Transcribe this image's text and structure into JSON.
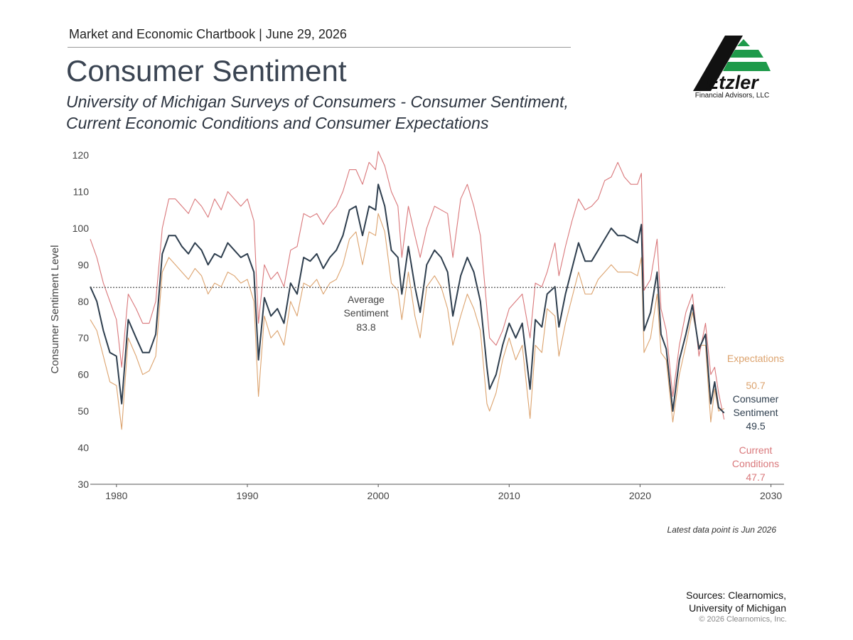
{
  "header": "Market and Economic Chartbook | June 29, 2026",
  "title": "Consumer Sentiment",
  "subtitle": [
    "University of Michigan Surveys of Consumers - Consumer Sentiment,",
    "Current Economic Conditions and Consumer Expectations"
  ],
  "logo": {
    "name": "Etzler",
    "tagline": "Financial Advisors, LLC"
  },
  "chart_data": {
    "type": "line",
    "ylabel": "Consumer Sentiment Level",
    "xlim": [
      1978,
      2031
    ],
    "xticks": [
      1980,
      1990,
      2000,
      2010,
      2020,
      2030
    ],
    "ylim": [
      30,
      120
    ],
    "yticks": [
      30,
      40,
      50,
      60,
      70,
      80,
      90,
      100,
      110,
      120
    ],
    "grid": false,
    "x": [
      1978.0,
      1978.5,
      1979.0,
      1979.5,
      1980.0,
      1980.4,
      1980.9,
      1981.5,
      1982.0,
      1982.5,
      1983.0,
      1983.5,
      1984.0,
      1984.5,
      1985.0,
      1985.5,
      1986.0,
      1986.5,
      1987.0,
      1987.5,
      1988.0,
      1988.5,
      1989.0,
      1989.5,
      1990.0,
      1990.5,
      1990.85,
      1991.3,
      1991.8,
      1992.3,
      1992.8,
      1993.3,
      1993.8,
      1994.3,
      1994.8,
      1995.3,
      1995.8,
      1996.3,
      1996.8,
      1997.3,
      1997.8,
      1998.3,
      1998.8,
      1999.3,
      1999.8,
      2000.0,
      2000.5,
      2001.0,
      2001.5,
      2001.8,
      2002.3,
      2002.8,
      2003.2,
      2003.7,
      2004.3,
      2004.8,
      2005.3,
      2005.7,
      2006.3,
      2006.8,
      2007.3,
      2007.8,
      2008.3,
      2008.5,
      2009.0,
      2009.5,
      2010.0,
      2010.5,
      2011.0,
      2011.6,
      2012.0,
      2012.5,
      2012.9,
      2013.5,
      2013.8,
      2014.3,
      2014.8,
      2015.3,
      2015.8,
      2016.3,
      2016.8,
      2017.3,
      2017.8,
      2018.3,
      2018.8,
      2019.3,
      2019.8,
      2020.1,
      2020.3,
      2020.8,
      2021.3,
      2021.6,
      2022.0,
      2022.5,
      2023.0,
      2023.5,
      2024.0,
      2024.5,
      2025.0,
      2025.4,
      2025.7,
      2026.0,
      2026.42
    ],
    "series": [
      {
        "name": "Current Conditions",
        "color": "#d9777a",
        "values": [
          97,
          92,
          85,
          80,
          75,
          62,
          82,
          78,
          74,
          74,
          80,
          100,
          108,
          108,
          106,
          104,
          108,
          106,
          103,
          108,
          105,
          110,
          108,
          106,
          108,
          102,
          74,
          90,
          86,
          88,
          84,
          94,
          95,
          104,
          103,
          104,
          101,
          104,
          106,
          110,
          116,
          116,
          112,
          118,
          116,
          121,
          117,
          110,
          106,
          92,
          106,
          98,
          92,
          100,
          106,
          105,
          104,
          92,
          108,
          112,
          106,
          98,
          78,
          70,
          68,
          72,
          78,
          80,
          82,
          70,
          85,
          84,
          88,
          96,
          87,
          95,
          102,
          108,
          105,
          106,
          108,
          113,
          114,
          118,
          114,
          112,
          112,
          115,
          83,
          86,
          97,
          78,
          72,
          54,
          68,
          77,
          82,
          65,
          74,
          60,
          62,
          55,
          47.7
        ]
      },
      {
        "name": "Expectations",
        "color": "#dca36e",
        "values": [
          75,
          72,
          65,
          58,
          57,
          45,
          70,
          65,
          60,
          61,
          65,
          88,
          92,
          90,
          88,
          86,
          89,
          87,
          82,
          85,
          84,
          88,
          87,
          85,
          86,
          80,
          54,
          76,
          70,
          72,
          68,
          80,
          76,
          85,
          84,
          86,
          82,
          85,
          86,
          90,
          97,
          99,
          90,
          99,
          98,
          104,
          99,
          85,
          83,
          75,
          88,
          76,
          70,
          84,
          87,
          84,
          78,
          68,
          76,
          82,
          78,
          72,
          52,
          50,
          55,
          64,
          70,
          64,
          68,
          48,
          68,
          66,
          78,
          76,
          65,
          74,
          81,
          88,
          82,
          82,
          86,
          88,
          90,
          88,
          88,
          88,
          87,
          92,
          66,
          70,
          82,
          66,
          64,
          47,
          60,
          68,
          77,
          68,
          68,
          47,
          56,
          50,
          50.7
        ]
      },
      {
        "name": "Consumer Sentiment",
        "color": "#2e3e4e",
        "values": [
          84,
          80,
          72,
          66,
          65,
          52,
          75,
          70,
          66,
          66,
          71,
          93,
          98,
          98,
          95,
          93,
          96,
          94,
          90,
          93,
          92,
          96,
          94,
          92,
          93,
          88,
          64,
          81,
          76,
          78,
          74,
          85,
          82,
          92,
          91,
          93,
          89,
          92,
          94,
          98,
          105,
          106,
          98,
          106,
          105,
          112,
          106,
          94,
          92,
          82,
          95,
          84,
          77,
          90,
          94,
          92,
          88,
          76,
          87,
          92,
          88,
          80,
          62,
          56,
          60,
          68,
          74,
          70,
          74,
          56,
          75,
          73,
          82,
          84,
          73,
          82,
          89,
          96,
          91,
          91,
          94,
          97,
          100,
          98,
          98,
          97,
          96,
          101,
          72,
          77,
          88,
          71,
          67,
          50,
          64,
          71,
          79,
          67,
          71,
          52,
          58,
          51,
          49.5
        ]
      }
    ],
    "average": {
      "text": "Average Sentiment",
      "value": 83.8
    },
    "note": "Latest data point is Jun 2026"
  },
  "footer": {
    "sources": [
      "Sources: Clearnomics,",
      "University of Michigan"
    ],
    "copyright": "© 2026 Clearnomics, Inc."
  }
}
